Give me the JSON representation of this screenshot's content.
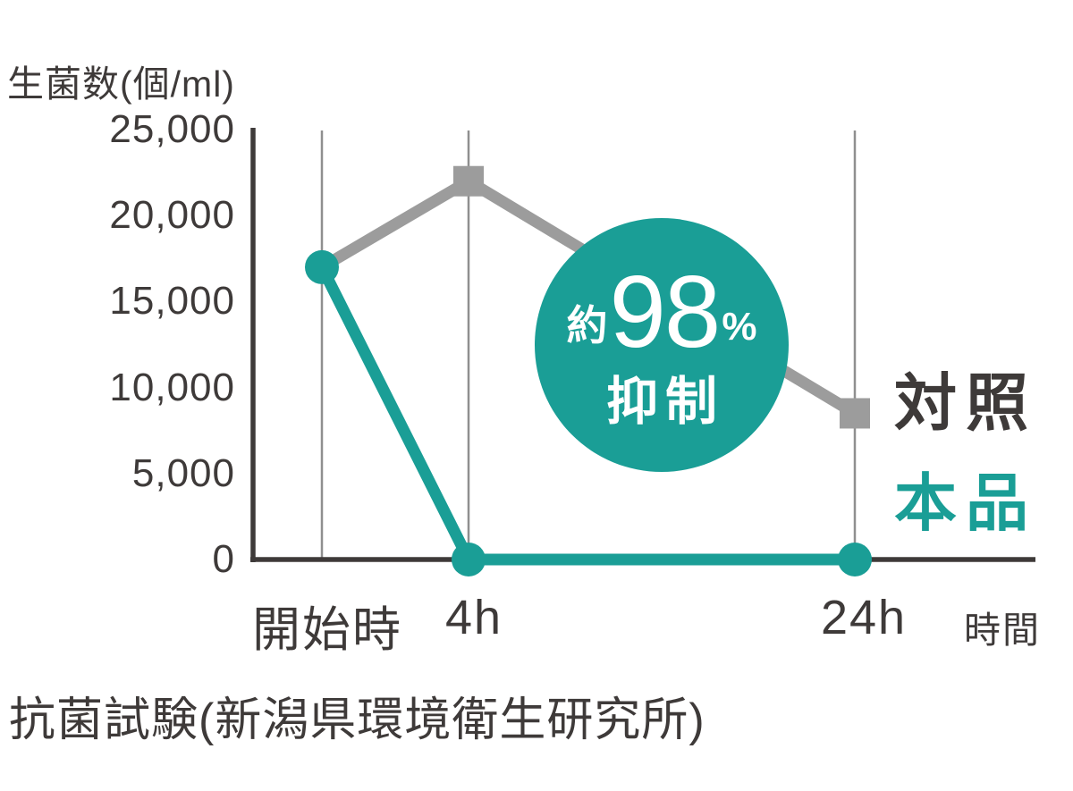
{
  "colors": {
    "axis": "#3E3A39",
    "gridline": "#8F8F8F",
    "control": "#9C9C9C",
    "product": "#1A9E96",
    "text": "#3E3A39",
    "badge_bg": "#1A9E96",
    "badge_text": "#FFFFFF"
  },
  "chart": {
    "y_axis_title": "生菌数(個/ml)",
    "x_axis_title": "時間",
    "y_ticks": [
      "25,000",
      "20,000",
      "15,000",
      "10,000",
      "5,000",
      "0"
    ],
    "x_ticks": [
      "開始時",
      "4h",
      "24h"
    ],
    "legend": [
      {
        "label": "対照",
        "marker": "square",
        "color": "#9C9C9C",
        "text_color": "#3E3A39"
      },
      {
        "label": "本品",
        "marker": "circle",
        "color": "#1A9E96",
        "text_color": "#1A9E96"
      }
    ],
    "badge": {
      "prefix": "約",
      "value": "98",
      "unit": "%",
      "suffix": "抑制"
    }
  },
  "caption": "抗菌試験(新潟県環境衛生研究所)",
  "chart_data": {
    "type": "line",
    "title": "",
    "categories": [
      "開始時",
      "4h",
      "24h"
    ],
    "series": [
      {
        "name": "対照",
        "color": "#9C9C9C",
        "marker": "square",
        "values": [
          17000,
          22000,
          8500
        ],
        "show_markers": [
          false,
          true,
          true
        ]
      },
      {
        "name": "本品",
        "color": "#1A9E96",
        "marker": "circle",
        "values": [
          17000,
          0,
          0
        ],
        "show_markers": [
          true,
          true,
          true
        ]
      }
    ],
    "xlabel": "時間",
    "ylabel": "生菌数(個/ml)",
    "ylim": [
      0,
      25000
    ],
    "y_tick_step": 5000,
    "grid": "vertical-only",
    "legend_position": "right",
    "annotation": "約98%抑制"
  }
}
